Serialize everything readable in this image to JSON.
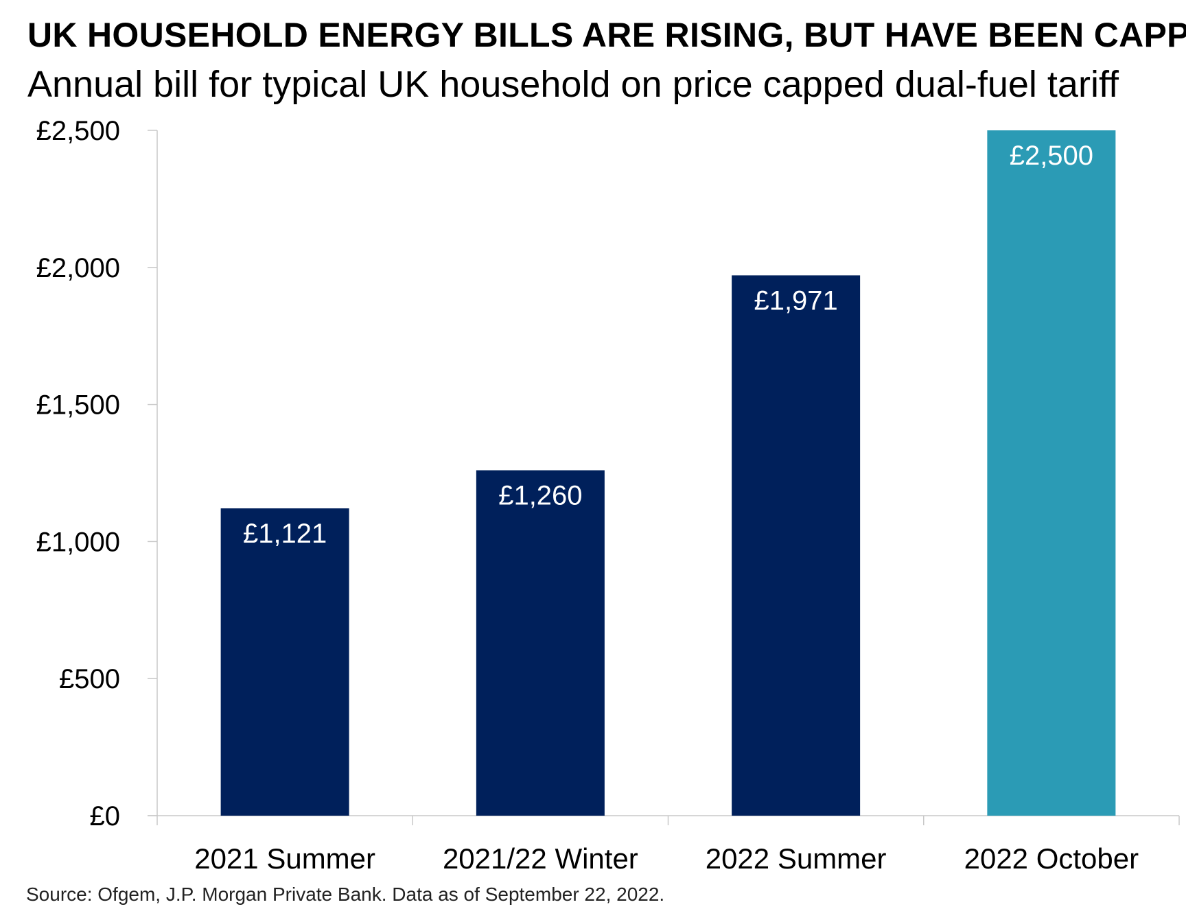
{
  "chart_data": {
    "type": "bar",
    "title": "UK HOUSEHOLD ENERGY BILLS ARE RISING, BUT HAVE BEEN CAPPED",
    "subtitle": "Annual bill for typical UK household on price capped dual-fuel tariff",
    "categories": [
      "2021 Summer",
      "2021/22 Winter",
      "2022 Summer",
      "2022 October"
    ],
    "values": [
      1121,
      1260,
      1971,
      2500
    ],
    "data_labels": [
      "£1,121",
      "£1,260",
      "£1,971",
      "£2,500"
    ],
    "colors": [
      "#00205b",
      "#00205b",
      "#00205b",
      "#2b9bb5"
    ],
    "ylim": [
      0,
      2500
    ],
    "yticks": [
      0,
      500,
      1000,
      1500,
      2000,
      2500
    ],
    "ytick_labels": [
      "£0",
      "£500",
      "£1,000",
      "£1,500",
      "£2,000",
      "£2,500"
    ],
    "xlabel": "",
    "ylabel": "",
    "grid": false,
    "legend": "none"
  },
  "source": "Source: Ofgem, J.P. Morgan Private Bank. Data as of September 22, 2022."
}
